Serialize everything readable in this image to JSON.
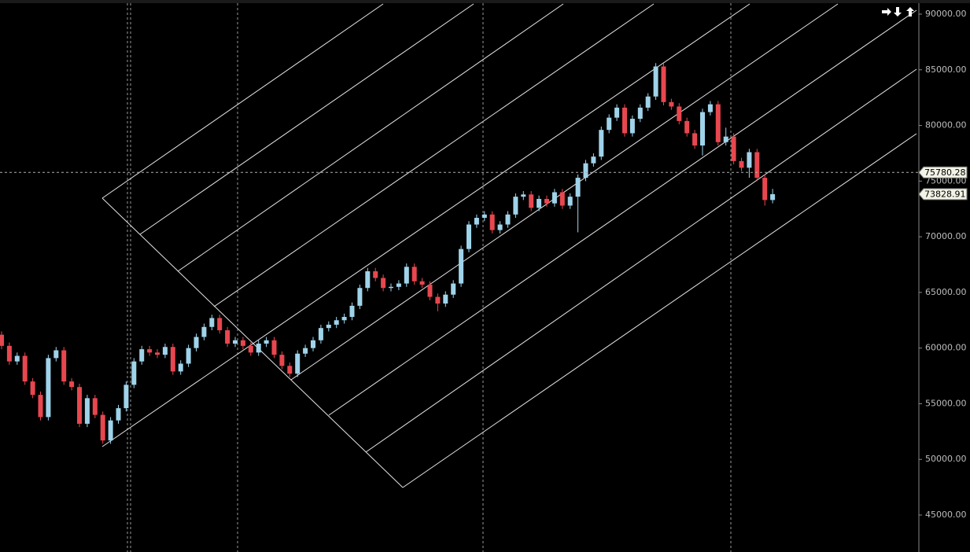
{
  "chart_data": {
    "type": "candlestick",
    "open": [
      61200,
      60200,
      58800,
      59300,
      57000,
      55800,
      53800,
      59100,
      59800,
      57000,
      56500,
      53200,
      55500,
      54000,
      51700,
      53500,
      54600,
      56700,
      58800,
      59900,
      59600,
      59400,
      60100,
      57900,
      58600,
      60000,
      61000,
      61900,
      62700,
      61600,
      60400,
      60700,
      60200,
      59600,
      60400,
      60700,
      59400,
      58400,
      57700,
      59500,
      60000,
      60700,
      61800,
      62100,
      62500,
      62800,
      63800,
      65400,
      66900,
      66300,
      65400,
      65500,
      65800,
      67300,
      66000,
      65700,
      64600,
      64000,
      64800,
      65800,
      68900,
      71100,
      71700,
      72000,
      70600,
      71100,
      72000,
      73600,
      73800,
      72600,
      73400,
      73000,
      74000,
      72800,
      73600,
      75300,
      76600,
      77200,
      79600,
      80700,
      81600,
      79300,
      80600,
      81600,
      82600,
      85300,
      82100,
      81700,
      80400,
      79300,
      78200,
      81200,
      81900,
      78500,
      79000,
      76800,
      76200,
      77600,
      75300,
      73300
    ],
    "high": [
      61500,
      60500,
      59600,
      59600,
      57300,
      56100,
      59400,
      60100,
      60100,
      57300,
      56800,
      55800,
      55800,
      54300,
      53800,
      54900,
      57000,
      59100,
      60200,
      60200,
      59900,
      60400,
      60400,
      58900,
      60300,
      61300,
      62200,
      63000,
      63000,
      61900,
      61000,
      61000,
      60500,
      60700,
      61000,
      61000,
      59700,
      58700,
      59800,
      60300,
      61000,
      62100,
      62400,
      62800,
      63100,
      64100,
      65700,
      67200,
      67200,
      66600,
      65800,
      66100,
      67600,
      67600,
      66300,
      66000,
      64900,
      65100,
      66100,
      69200,
      71400,
      72000,
      72300,
      72300,
      71400,
      72300,
      73900,
      74100,
      74100,
      73700,
      73700,
      74300,
      74300,
      73900,
      75600,
      76900,
      77500,
      79900,
      81000,
      81900,
      81900,
      80900,
      81900,
      82900,
      85600,
      85600,
      82400,
      82000,
      80700,
      79600,
      81500,
      82200,
      82200,
      79800,
      79300,
      77100,
      77900,
      77900,
      75600,
      74300
    ],
    "low": [
      59900,
      58500,
      58500,
      56700,
      55500,
      53500,
      53500,
      58800,
      56700,
      56200,
      52900,
      52900,
      53700,
      51400,
      51400,
      53200,
      54300,
      56400,
      58500,
      59300,
      59100,
      59100,
      57600,
      57600,
      58300,
      59700,
      60700,
      61600,
      61300,
      60100,
      60100,
      59900,
      59300,
      59300,
      60100,
      59100,
      58100,
      57400,
      57400,
      59200,
      59700,
      60400,
      61500,
      61800,
      62200,
      62500,
      63500,
      65100,
      66000,
      65100,
      65100,
      65200,
      65500,
      65700,
      65400,
      64300,
      63300,
      63700,
      64500,
      65500,
      68600,
      70800,
      71400,
      70300,
      70300,
      70800,
      71700,
      73300,
      72300,
      72300,
      72700,
      72700,
      72500,
      72500,
      70400,
      75000,
      76300,
      76900,
      79300,
      80400,
      79000,
      79000,
      80300,
      81300,
      82300,
      81800,
      81400,
      80100,
      79000,
      77900,
      77300,
      80900,
      78200,
      78200,
      76500,
      75900,
      75300,
      75000,
      72800,
      73000
    ],
    "close": [
      60200,
      58800,
      59300,
      57000,
      55800,
      53800,
      59100,
      59800,
      57000,
      56500,
      53200,
      55500,
      54000,
      51700,
      53500,
      54600,
      56700,
      58800,
      59900,
      59600,
      59400,
      60100,
      57900,
      58600,
      60000,
      61000,
      61900,
      62700,
      61600,
      60400,
      60700,
      60200,
      59600,
      60400,
      60700,
      59400,
      58400,
      57700,
      59500,
      60000,
      60700,
      61800,
      62100,
      62500,
      62800,
      63800,
      65400,
      66900,
      66300,
      65400,
      65500,
      65800,
      67300,
      66000,
      65700,
      64600,
      64000,
      64800,
      65800,
      68900,
      71100,
      71700,
      72000,
      70600,
      71100,
      72000,
      73600,
      73800,
      72600,
      73400,
      73000,
      74000,
      72800,
      73600,
      75300,
      76600,
      77200,
      79600,
      80700,
      81600,
      79300,
      80600,
      81600,
      82600,
      85300,
      82100,
      81700,
      80400,
      79300,
      78200,
      81200,
      81900,
      78500,
      79000,
      76800,
      76200,
      77600,
      75300,
      73300,
      73828.91
    ],
    "up_color": "#9fd3ea",
    "down_color": "#e8474f",
    "ylim": [
      41680,
      91270
    ],
    "yticks": [
      {
        "value": 45000,
        "label": "45000.00"
      },
      {
        "value": 50000,
        "label": "50000.00"
      },
      {
        "value": 55000,
        "label": "55000.00"
      },
      {
        "value": 60000,
        "label": "60000.00"
      },
      {
        "value": 65000,
        "label": "65000.00"
      },
      {
        "value": 70000,
        "label": "70000.00"
      },
      {
        "value": 75000,
        "label": "75000.00"
      },
      {
        "value": 80000,
        "label": "80000.00"
      },
      {
        "value": 85000,
        "label": "85000.00"
      },
      {
        "value": 90000,
        "label": "90000.00"
      }
    ],
    "price_labels": [
      75780.28,
      73828.91
    ]
  }
}
